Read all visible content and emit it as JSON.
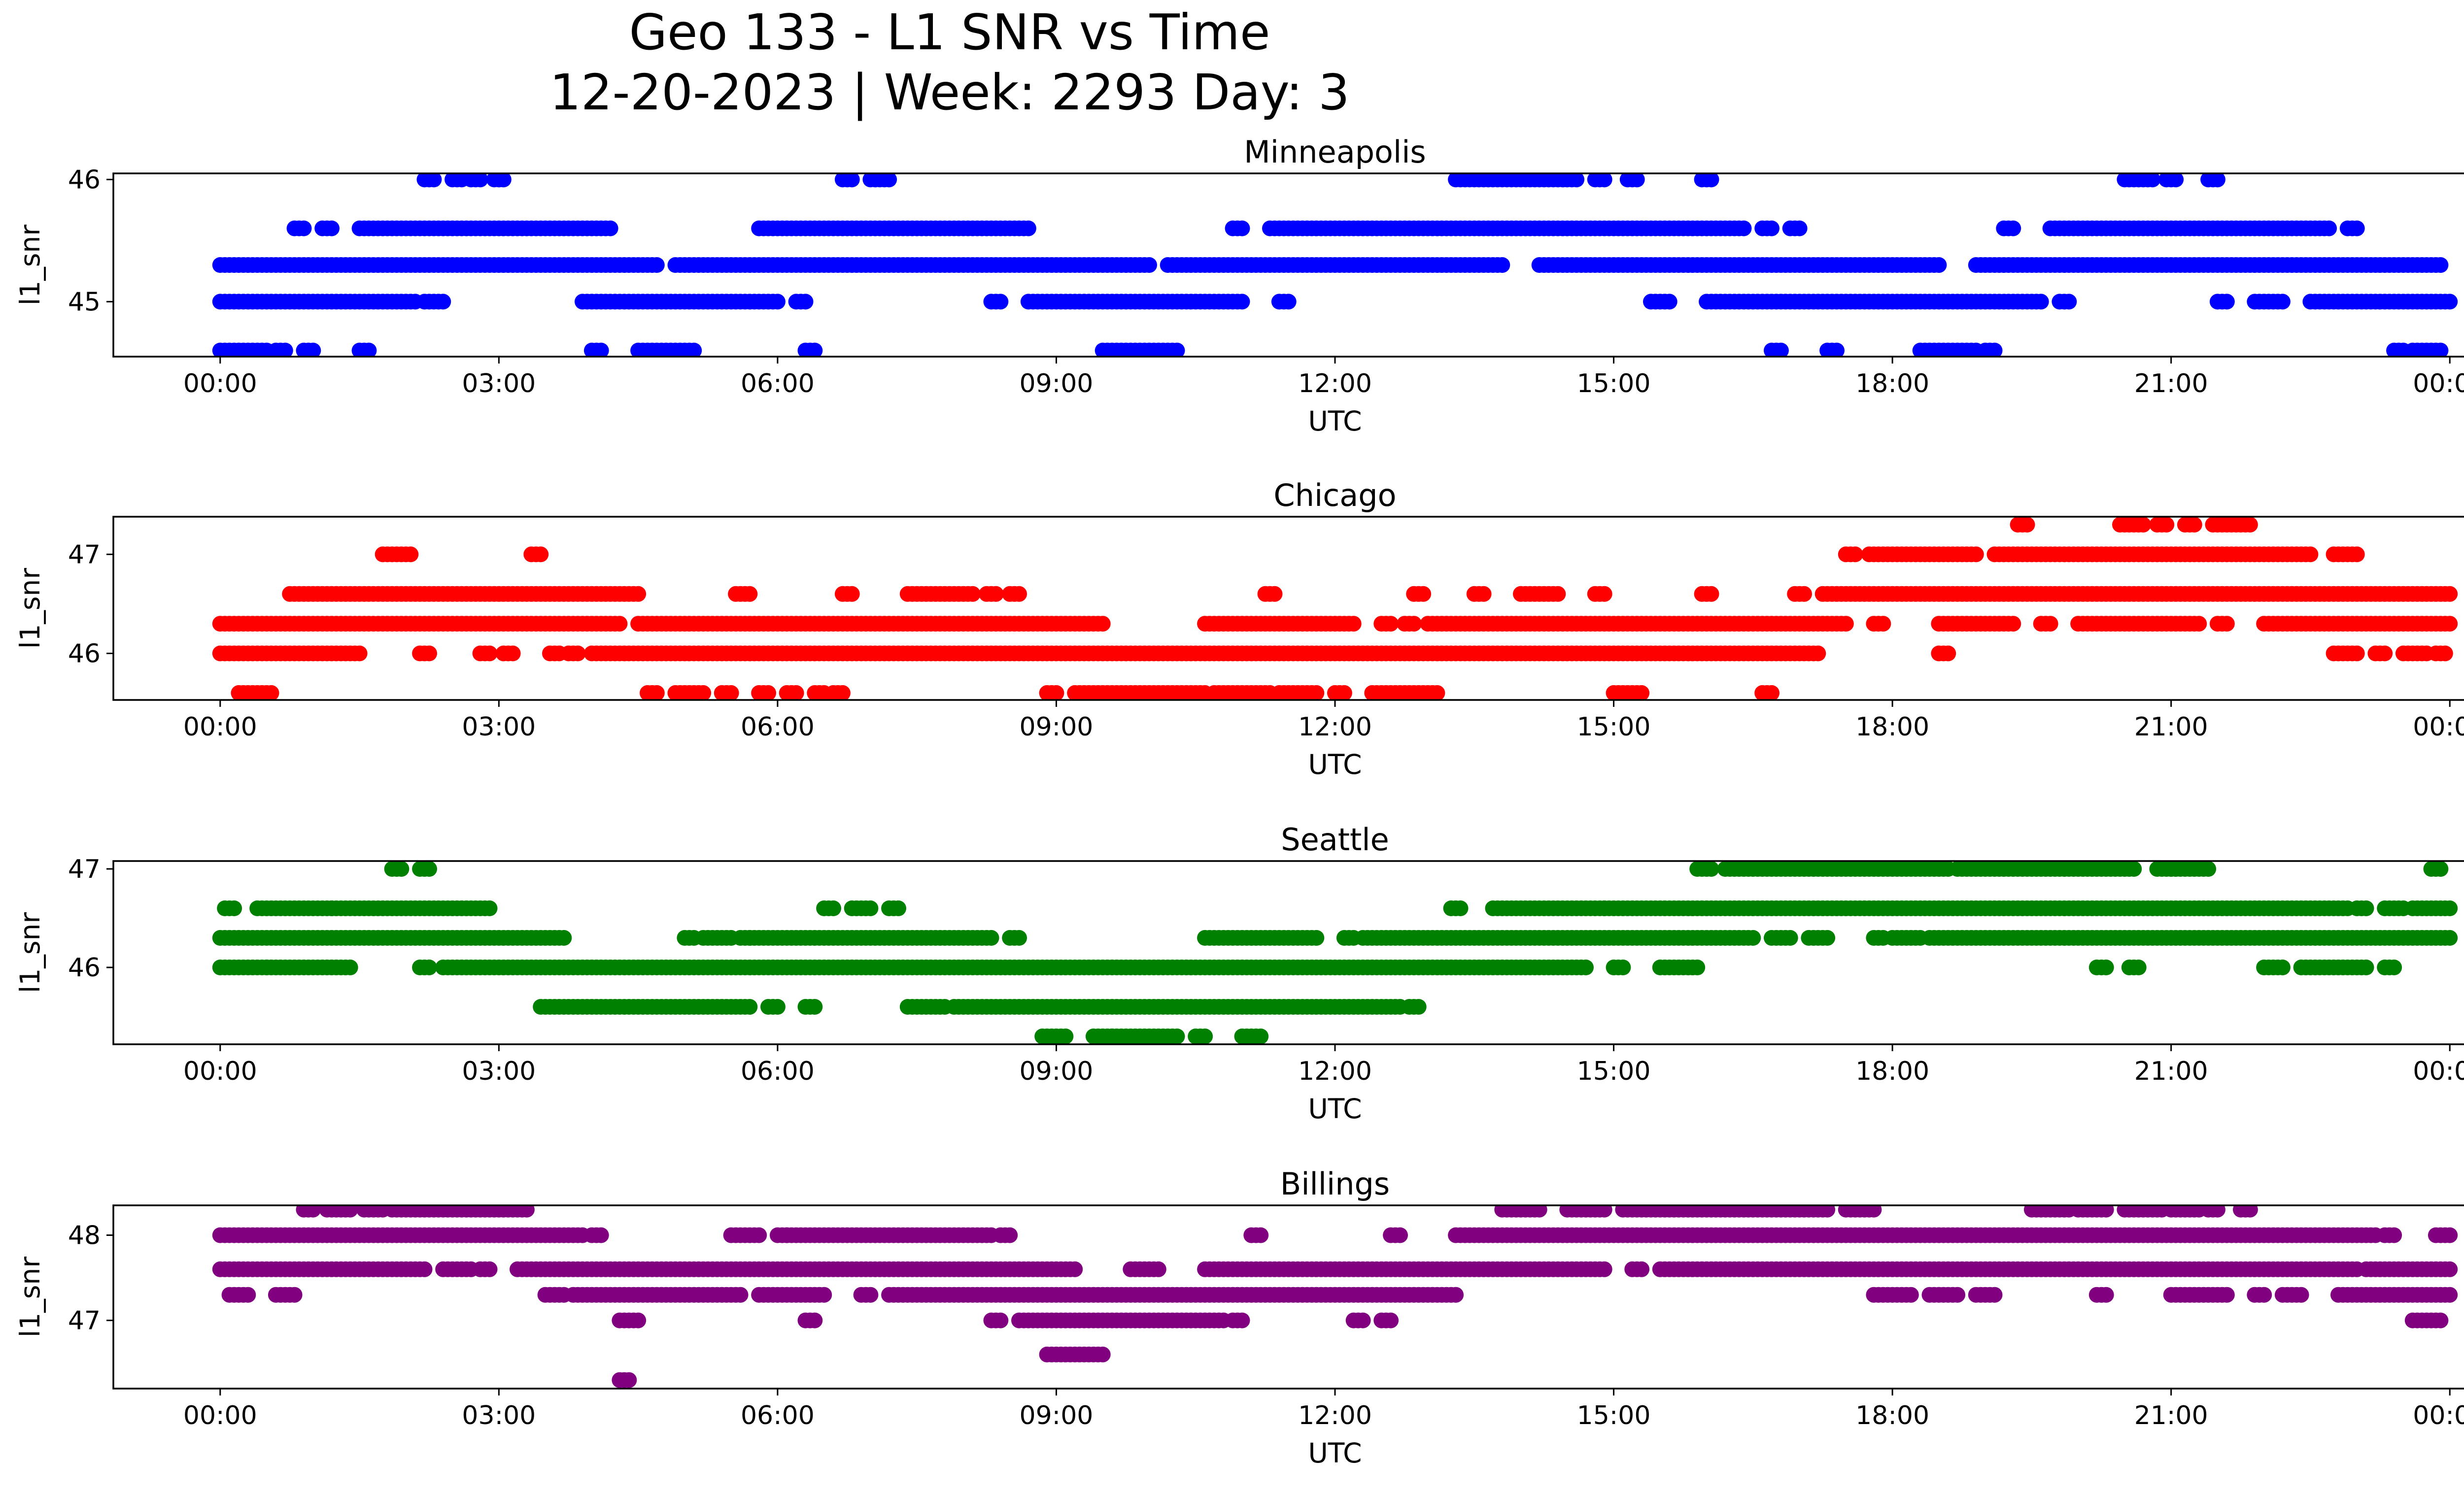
{
  "figure": {
    "title_line1": "Geo 133 - L1 SNR vs Time",
    "title_line2": "12-20-2023 | Week: 2293 Day: 3"
  },
  "chart_data": [
    {
      "type": "scatter",
      "title": "Minneapolis",
      "xlabel": "UTC",
      "ylabel": "l1_snr",
      "color": "#0000ff",
      "xlim_hours": [
        -1.15,
        25.15
      ],
      "ylim": [
        44.55,
        46.05
      ],
      "xticks": [
        "00:00",
        "03:00",
        "06:00",
        "09:00",
        "12:00",
        "15:00",
        "18:00",
        "21:00",
        "00:00"
      ],
      "yticks": [
        45,
        46
      ],
      "segments": [
        {
          "y": 46.0,
          "spans": [
            [
              2.2,
              2.3
            ],
            [
              2.5,
              2.6
            ],
            [
              2.7,
              2.8
            ],
            [
              2.95,
              3.05
            ],
            [
              6.7,
              6.8
            ],
            [
              7.0,
              7.2
            ],
            [
              13.3,
              14.6
            ],
            [
              14.8,
              14.9
            ],
            [
              15.15,
              15.25
            ],
            [
              15.95,
              16.05
            ],
            [
              20.5,
              20.8
            ],
            [
              20.95,
              21.05
            ],
            [
              21.4,
              21.5
            ]
          ]
        },
        {
          "y": 45.6,
          "spans": [
            [
              0.8,
              0.9
            ],
            [
              1.1,
              1.2
            ],
            [
              1.5,
              4.2
            ],
            [
              5.8,
              8.7
            ],
            [
              10.9,
              11.0
            ],
            [
              11.3,
              16.4
            ],
            [
              16.6,
              16.7
            ],
            [
              16.9,
              17.0
            ],
            [
              19.2,
              19.3
            ],
            [
              19.7,
              22.7
            ],
            [
              22.9,
              23.0
            ]
          ]
        },
        {
          "y": 45.3,
          "spans": [
            [
              0.0,
              4.7
            ],
            [
              4.9,
              10.0
            ],
            [
              10.2,
              13.8
            ],
            [
              14.2,
              18.5
            ],
            [
              18.9,
              23.9
            ]
          ]
        },
        {
          "y": 45.0,
          "spans": [
            [
              0.0,
              2.1
            ],
            [
              2.2,
              2.4
            ],
            [
              3.9,
              6.0
            ],
            [
              6.2,
              6.3
            ],
            [
              8.3,
              8.4
            ],
            [
              8.7,
              11.0
            ],
            [
              11.4,
              11.5
            ],
            [
              15.4,
              15.6
            ],
            [
              16.0,
              19.6
            ],
            [
              19.8,
              19.9
            ],
            [
              21.5,
              21.6
            ],
            [
              21.9,
              22.2
            ],
            [
              22.5,
              24.0
            ]
          ]
        },
        {
          "y": 44.6,
          "spans": [
            [
              0.0,
              0.5
            ],
            [
              0.6,
              0.7
            ],
            [
              0.9,
              1.0
            ],
            [
              1.5,
              1.6
            ],
            [
              4.0,
              4.1
            ],
            [
              4.5,
              5.1
            ],
            [
              6.3,
              6.4
            ],
            [
              9.5,
              10.3
            ],
            [
              16.7,
              16.8
            ],
            [
              17.3,
              17.4
            ],
            [
              18.3,
              18.9
            ],
            [
              19.0,
              19.1
            ],
            [
              23.4,
              23.5
            ],
            [
              23.6,
              23.9
            ]
          ]
        }
      ]
    },
    {
      "type": "scatter",
      "title": "Chicago",
      "xlabel": "UTC",
      "ylabel": "l1_snr",
      "color": "#ff0000",
      "xlim_hours": [
        -1.15,
        25.15
      ],
      "ylim": [
        45.53,
        47.38
      ],
      "xticks": [
        "00:00",
        "03:00",
        "06:00",
        "09:00",
        "12:00",
        "15:00",
        "18:00",
        "21:00",
        "00:00"
      ],
      "yticks": [
        46,
        47
      ],
      "segments": [
        {
          "y": 47.3,
          "spans": [
            [
              19.35,
              19.45
            ],
            [
              20.45,
              20.7
            ],
            [
              20.85,
              20.95
            ],
            [
              21.15,
              21.25
            ],
            [
              21.45,
              21.85
            ]
          ]
        },
        {
          "y": 47.0,
          "spans": [
            [
              1.75,
              2.05
            ],
            [
              3.35,
              3.45
            ],
            [
              17.5,
              17.6
            ],
            [
              17.75,
              18.9
            ],
            [
              19.1,
              22.5
            ],
            [
              22.75,
              23.0
            ]
          ]
        },
        {
          "y": 46.6,
          "spans": [
            [
              0.75,
              4.5
            ],
            [
              5.55,
              5.7
            ],
            [
              6.7,
              6.8
            ],
            [
              7.4,
              8.1
            ],
            [
              8.25,
              8.35
            ],
            [
              8.5,
              8.6
            ],
            [
              11.25,
              11.35
            ],
            [
              12.85,
              12.95
            ],
            [
              13.5,
              13.6
            ],
            [
              14.0,
              14.4
            ],
            [
              14.8,
              14.9
            ],
            [
              15.95,
              16.05
            ],
            [
              16.95,
              17.05
            ],
            [
              17.25,
              24.0
            ]
          ]
        },
        {
          "y": 46.3,
          "spans": [
            [
              0.0,
              4.3
            ],
            [
              4.5,
              9.5
            ],
            [
              10.6,
              12.2
            ],
            [
              12.5,
              12.6
            ],
            [
              12.75,
              12.85
            ],
            [
              13.0,
              17.5
            ],
            [
              17.8,
              17.9
            ],
            [
              18.5,
              19.3
            ],
            [
              19.6,
              19.7
            ],
            [
              20.0,
              21.3
            ],
            [
              21.5,
              21.6
            ],
            [
              22.0,
              24.0
            ]
          ]
        },
        {
          "y": 46.0,
          "spans": [
            [
              0.0,
              1.5
            ],
            [
              2.15,
              2.25
            ],
            [
              2.8,
              2.9
            ],
            [
              3.05,
              3.15
            ],
            [
              3.55,
              3.65
            ],
            [
              3.75,
              3.85
            ],
            [
              4.0,
              17.2
            ],
            [
              18.5,
              18.6
            ],
            [
              22.75,
              23.0
            ],
            [
              23.2,
              23.3
            ],
            [
              23.5,
              23.75
            ],
            [
              23.85,
              23.95
            ]
          ]
        },
        {
          "y": 45.6,
          "spans": [
            [
              0.2,
              0.55
            ],
            [
              4.6,
              4.7
            ],
            [
              4.9,
              5.2
            ],
            [
              5.4,
              5.5
            ],
            [
              5.8,
              5.9
            ],
            [
              6.1,
              6.2
            ],
            [
              6.4,
              6.5
            ],
            [
              6.6,
              6.7
            ],
            [
              8.9,
              9.0
            ],
            [
              9.2,
              10.6
            ],
            [
              10.7,
              11.3
            ],
            [
              11.4,
              11.8
            ],
            [
              12.0,
              12.1
            ],
            [
              12.4,
              13.1
            ],
            [
              15.0,
              15.3
            ],
            [
              16.6,
              16.7
            ]
          ]
        }
      ]
    },
    {
      "type": "scatter",
      "title": "Seattle",
      "xlabel": "UTC",
      "ylabel": "l1_snr",
      "color": "#008000",
      "xlim_hours": [
        -1.15,
        25.15
      ],
      "ylim": [
        45.22,
        47.08
      ],
      "xticks": [
        "00:00",
        "03:00",
        "06:00",
        "09:00",
        "12:00",
        "15:00",
        "18:00",
        "21:00",
        "00:00"
      ],
      "yticks": [
        46,
        47
      ],
      "segments": [
        {
          "y": 47.0,
          "spans": [
            [
              1.85,
              1.95
            ],
            [
              2.15,
              2.25
            ],
            [
              15.9,
              16.05
            ],
            [
              16.2,
              18.6
            ],
            [
              18.7,
              20.6
            ],
            [
              20.85,
              21.05
            ],
            [
              21.0,
              21.4
            ],
            [
              23.8,
              23.9
            ]
          ]
        },
        {
          "y": 46.6,
          "spans": [
            [
              0.05,
              0.15
            ],
            [
              0.4,
              1.2
            ],
            [
              1.2,
              2.9
            ],
            [
              6.5,
              6.6
            ],
            [
              6.8,
              7.0
            ],
            [
              7.2,
              7.3
            ],
            [
              13.25,
              13.35
            ],
            [
              13.7,
              14.9
            ],
            [
              14.9,
              22.9
            ],
            [
              23.0,
              23.1
            ],
            [
              23.3,
              23.5
            ],
            [
              23.6,
              24.0
            ]
          ]
        },
        {
          "y": 46.3,
          "spans": [
            [
              0.0,
              3.7
            ],
            [
              5.0,
              5.1
            ],
            [
              5.2,
              5.5
            ],
            [
              5.6,
              5.7
            ],
            [
              5.7,
              8.3
            ],
            [
              8.5,
              8.6
            ],
            [
              10.6,
              11.8
            ],
            [
              12.1,
              12.2
            ],
            [
              12.3,
              16.5
            ],
            [
              16.7,
              16.9
            ],
            [
              17.1,
              17.3
            ],
            [
              17.8,
              17.9
            ],
            [
              18.0,
              18.3
            ],
            [
              18.4,
              24.0
            ]
          ]
        },
        {
          "y": 46.0,
          "spans": [
            [
              0.0,
              0.5
            ],
            [
              0.5,
              1.4
            ],
            [
              2.15,
              2.25
            ],
            [
              2.4,
              14.7
            ],
            [
              15.0,
              15.1
            ],
            [
              15.5,
              15.9
            ],
            [
              20.2,
              20.3
            ],
            [
              20.55,
              20.65
            ],
            [
              22.0,
              22.2
            ],
            [
              22.4,
              23.1
            ],
            [
              23.3,
              23.4
            ]
          ]
        },
        {
          "y": 45.6,
          "spans": [
            [
              3.45,
              5.7
            ],
            [
              5.9,
              6.0
            ],
            [
              6.3,
              6.4
            ],
            [
              7.4,
              7.8
            ],
            [
              7.9,
              12.7
            ],
            [
              12.8,
              12.9
            ]
          ]
        },
        {
          "y": 45.3,
          "spans": [
            [
              8.85,
              8.95
            ],
            [
              9.0,
              9.1
            ],
            [
              9.4,
              9.6
            ],
            [
              9.6,
              10.3
            ],
            [
              10.5,
              10.6
            ],
            [
              11.0,
              11.2
            ]
          ]
        }
      ]
    },
    {
      "type": "scatter",
      "title": "Billings",
      "xlabel": "UTC",
      "ylabel": "l1_snr",
      "color": "#800080",
      "xlim_hours": [
        -1.15,
        25.15
      ],
      "ylim": [
        46.2,
        48.35
      ],
      "xticks": [
        "00:00",
        "03:00",
        "06:00",
        "09:00",
        "12:00",
        "15:00",
        "18:00",
        "21:00",
        "00:00"
      ],
      "yticks": [
        47,
        48
      ],
      "segments": [
        {
          "y": 48.3,
          "spans": [
            [
              0.9,
              1.0
            ],
            [
              1.15,
              1.4
            ],
            [
              1.55,
              1.75
            ],
            [
              1.85,
              3.3
            ],
            [
              13.8,
              14.2
            ],
            [
              14.5,
              14.9
            ],
            [
              15.1,
              17.3
            ],
            [
              17.5,
              17.8
            ],
            [
              19.5,
              19.9
            ],
            [
              20.0,
              20.3
            ],
            [
              20.5,
              20.9
            ],
            [
              21.0,
              21.3
            ],
            [
              21.4,
              21.5
            ],
            [
              21.75,
              21.85
            ]
          ]
        },
        {
          "y": 48.0,
          "spans": [
            [
              0.0,
              3.9
            ],
            [
              4.0,
              4.1
            ],
            [
              5.5,
              5.8
            ],
            [
              6.0,
              6.1
            ],
            [
              6.1,
              8.3
            ],
            [
              8.4,
              8.5
            ],
            [
              11.1,
              11.2
            ],
            [
              12.6,
              12.7
            ],
            [
              13.3,
              23.2
            ],
            [
              23.3,
              23.4
            ],
            [
              23.85,
              24.0
            ]
          ]
        },
        {
          "y": 47.6,
          "spans": [
            [
              0.0,
              2.2
            ],
            [
              2.4,
              2.7
            ],
            [
              2.8,
              2.9
            ],
            [
              3.2,
              9.2
            ],
            [
              9.8,
              10.1
            ],
            [
              10.6,
              14.9
            ],
            [
              15.2,
              15.3
            ],
            [
              15.5,
              23.0
            ],
            [
              23.1,
              24.0
            ]
          ]
        },
        {
          "y": 47.3,
          "spans": [
            [
              0.1,
              0.3
            ],
            [
              0.6,
              0.8
            ],
            [
              3.5,
              3.7
            ],
            [
              3.8,
              5.6
            ],
            [
              5.8,
              6.5
            ],
            [
              6.9,
              7.0
            ],
            [
              7.2,
              13.3
            ],
            [
              17.8,
              18.2
            ],
            [
              18.4,
              18.7
            ],
            [
              18.9,
              19.1
            ],
            [
              20.2,
              20.3
            ],
            [
              21.0,
              21.6
            ],
            [
              21.9,
              22.0
            ],
            [
              22.2,
              22.4
            ],
            [
              22.8,
              24.0
            ]
          ]
        },
        {
          "y": 47.0,
          "spans": [
            [
              4.3,
              4.5
            ],
            [
              6.3,
              6.4
            ],
            [
              8.3,
              8.4
            ],
            [
              8.6,
              10.8
            ],
            [
              10.9,
              11.0
            ],
            [
              12.2,
              12.3
            ],
            [
              12.5,
              12.6
            ],
            [
              23.6,
              23.9
            ]
          ]
        },
        {
          "y": 46.6,
          "spans": [
            [
              8.9,
              9.5
            ]
          ]
        },
        {
          "y": 46.3,
          "spans": [
            [
              4.3,
              4.4
            ]
          ]
        }
      ]
    }
  ]
}
